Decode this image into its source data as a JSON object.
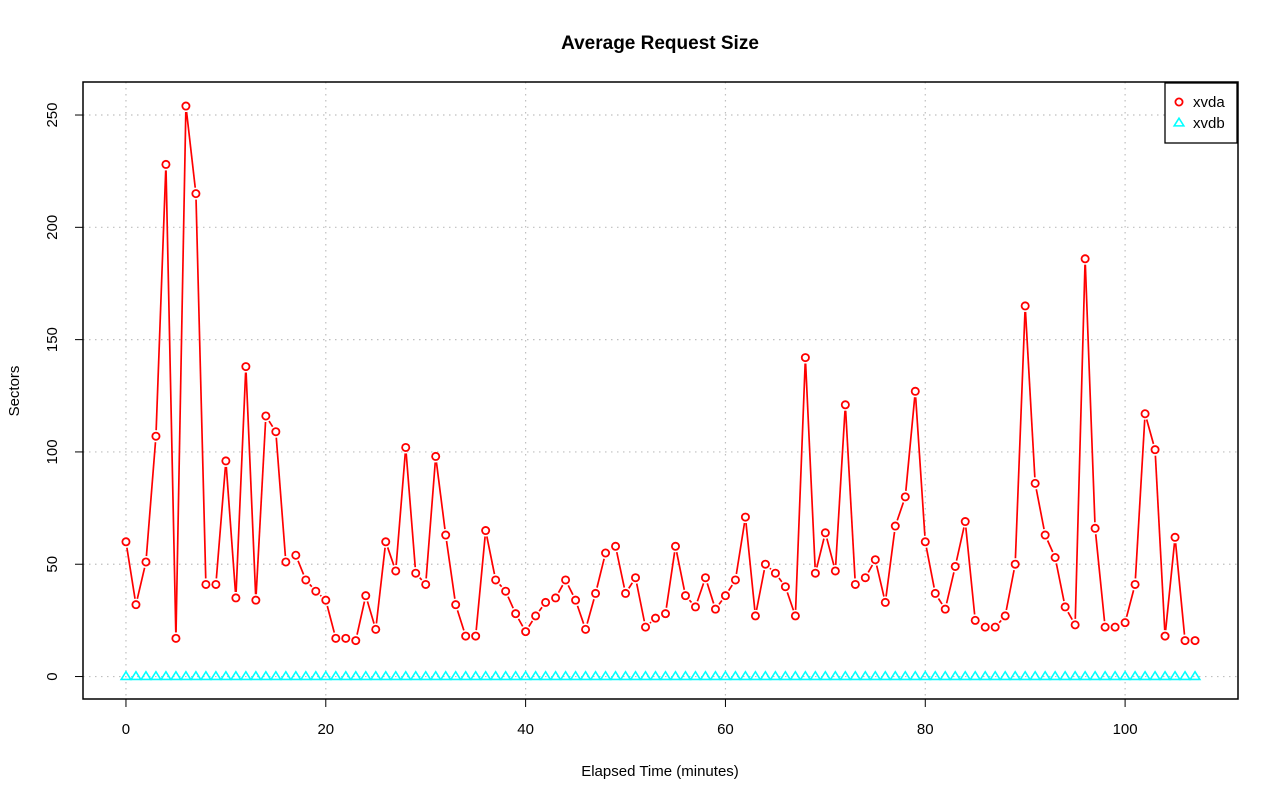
{
  "chart_data": {
    "type": "line",
    "title": "Average Request Size",
    "xlabel": "Elapsed Time (minutes)",
    "ylabel": "Sectors",
    "xlim": [
      -4.3,
      111.3
    ],
    "ylim": [
      -10,
      264.7
    ],
    "xticks": [
      0,
      20,
      40,
      60,
      80,
      100
    ],
    "yticks": [
      0,
      50,
      100,
      150,
      200,
      250
    ],
    "grid": true,
    "legend_position": "top-right",
    "series": [
      {
        "name": "xvda",
        "color": "#ff0000",
        "marker": "circle",
        "values": [
          60,
          32,
          51,
          107,
          228,
          17,
          254,
          215,
          41,
          41,
          96,
          35,
          138,
          34,
          116,
          109,
          51,
          54,
          43,
          38,
          34,
          17,
          17,
          16,
          36,
          21,
          60,
          47,
          102,
          46,
          41,
          98,
          63,
          32,
          18,
          18,
          65,
          43,
          38,
          28,
          20,
          27,
          33,
          35,
          43,
          34,
          21,
          37,
          55,
          58,
          37,
          44,
          22,
          26,
          28,
          58,
          36,
          31,
          44,
          30,
          36,
          43,
          71,
          27,
          50,
          46,
          40,
          27,
          142,
          46,
          64,
          47,
          121,
          41,
          44,
          52,
          33,
          67,
          80,
          127,
          60,
          37,
          30,
          49,
          69,
          25,
          22,
          22,
          27,
          50,
          165,
          86,
          63,
          53,
          31,
          23,
          186,
          66,
          22,
          22,
          24,
          41,
          117,
          101,
          18,
          62,
          16,
          16
        ]
      },
      {
        "name": "xvdb",
        "color": "#00ffff",
        "marker": "triangle",
        "values": [
          0,
          0,
          0,
          0,
          0,
          0,
          0,
          0,
          0,
          0,
          0,
          0,
          0,
          0,
          0,
          0,
          0,
          0,
          0,
          0,
          0,
          0,
          0,
          0,
          0,
          0,
          0,
          0,
          0,
          0,
          0,
          0,
          0,
          0,
          0,
          0,
          0,
          0,
          0,
          0,
          0,
          0,
          0,
          0,
          0,
          0,
          0,
          0,
          0,
          0,
          0,
          0,
          0,
          0,
          0,
          0,
          0,
          0,
          0,
          0,
          0,
          0,
          0,
          0,
          0,
          0,
          0,
          0,
          0,
          0,
          0,
          0,
          0,
          0,
          0,
          0,
          0,
          0,
          0,
          0,
          0,
          0,
          0,
          0,
          0,
          0,
          0,
          0,
          0,
          0,
          0,
          0,
          0,
          0,
          0,
          0,
          0,
          0,
          0,
          0,
          0,
          0,
          0,
          0,
          0,
          0,
          0,
          0
        ]
      }
    ]
  }
}
